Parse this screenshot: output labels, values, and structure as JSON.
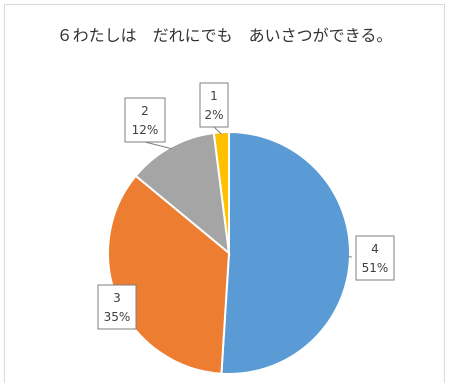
{
  "chart_data": {
    "type": "pie",
    "title": "６わたしは　だれにでも　あいさつができる。",
    "slices": [
      {
        "label": "4",
        "value": 51,
        "percent_label": "51%",
        "color": "#5b9bd5"
      },
      {
        "label": "3",
        "value": 35,
        "percent_label": "35%",
        "color": "#ed7d31"
      },
      {
        "label": "2",
        "value": 12,
        "percent_label": "12%",
        "color": "#a5a5a5"
      },
      {
        "label": "1",
        "value": 2,
        "percent_label": "2%",
        "color": "#ffc000"
      }
    ],
    "legend": "none",
    "data_labels": "callouts with category and percentage"
  }
}
